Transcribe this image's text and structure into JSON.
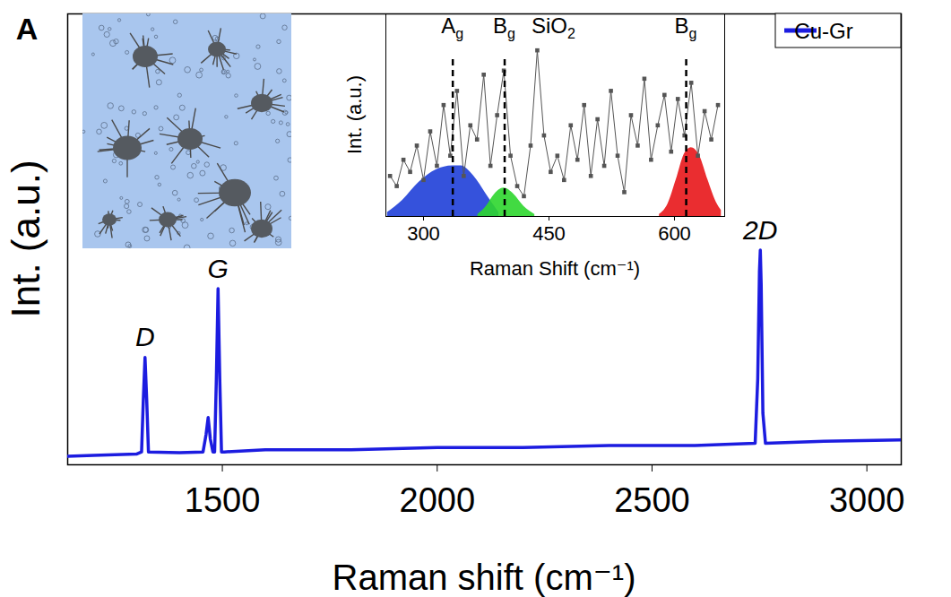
{
  "chart_data": [
    {
      "type": "line",
      "panel_label": "A",
      "x_label": "Raman shift (cm⁻¹)",
      "y_label": "Int. (a.u.)",
      "xlim": [
        1140,
        3080
      ],
      "xticks": [
        1500,
        2000,
        2500,
        3000
      ],
      "ylim": [
        0,
        1.05
      ],
      "tick_labels": "x",
      "legend": "top-right",
      "series": [
        {
          "name": "Cu-Gr",
          "color": "#1c1ce0",
          "x": [
            1140,
            1200,
            1300,
            1312,
            1316,
            1320,
            1324,
            1328,
            1400,
            1455,
            1462,
            1467,
            1472,
            1478,
            1482,
            1486,
            1490,
            1494,
            1498,
            1505,
            1600,
            1800,
            2000,
            2200,
            2400,
            2600,
            2740,
            2746,
            2750,
            2752,
            2754,
            2758,
            2764,
            2900,
            3080
          ],
          "values": [
            0.02,
            0.022,
            0.025,
            0.03,
            0.15,
            0.25,
            0.15,
            0.03,
            0.028,
            0.03,
            0.07,
            0.11,
            0.06,
            0.03,
            0.03,
            0.2,
            0.41,
            0.2,
            0.03,
            0.03,
            0.035,
            0.035,
            0.04,
            0.04,
            0.045,
            0.045,
            0.05,
            0.2,
            0.45,
            0.5,
            0.42,
            0.12,
            0.05,
            0.055,
            0.058
          ]
        }
      ],
      "peak_labels": [
        {
          "text": "D",
          "x": 1320
        },
        {
          "text": "G",
          "x": 1490
        },
        {
          "text": "2D",
          "x": 2752
        }
      ]
    },
    {
      "type": "line",
      "x_label": "Raman Shift (cm⁻¹)",
      "y_label": "Int. (a.u.)",
      "xlim": [
        255,
        660
      ],
      "xticks": [
        300,
        450,
        600
      ],
      "ylim": [
        0,
        1
      ],
      "tick_labels": "x",
      "series": [
        {
          "color": "#555555",
          "marker": "square",
          "x": [
            260,
            268,
            276,
            284,
            292,
            300,
            308,
            316,
            324,
            332,
            340,
            348,
            356,
            364,
            372,
            380,
            388,
            396,
            404,
            412,
            420,
            428,
            436,
            444,
            452,
            460,
            468,
            476,
            484,
            492,
            500,
            508,
            516,
            524,
            532,
            540,
            548,
            556,
            564,
            572,
            580,
            588,
            596,
            604,
            612,
            620,
            628,
            636,
            644,
            652
          ],
          "values": [
            0.2,
            0.15,
            0.28,
            0.22,
            0.35,
            0.18,
            0.42,
            0.25,
            0.55,
            0.3,
            0.62,
            0.2,
            0.45,
            0.38,
            0.7,
            0.25,
            0.5,
            0.72,
            0.3,
            0.15,
            0.1,
            0.35,
            0.82,
            0.4,
            0.22,
            0.3,
            0.18,
            0.45,
            0.28,
            0.55,
            0.2,
            0.48,
            0.25,
            0.62,
            0.3,
            0.12,
            0.5,
            0.35,
            0.68,
            0.28,
            0.45,
            0.6,
            0.32,
            0.58,
            0.4,
            0.66,
            0.3,
            0.52,
            0.38,
            0.55
          ]
        }
      ],
      "bands": [
        {
          "color": "#1f3fd8",
          "x": [
            257,
            275,
            295,
            315,
            335,
            345,
            360,
            375,
            390
          ],
          "values": [
            0.02,
            0.08,
            0.17,
            0.23,
            0.25,
            0.25,
            0.2,
            0.11,
            0.02
          ]
        },
        {
          "color": "#2ed62e",
          "x": [
            365,
            375,
            385,
            396,
            408,
            420,
            433
          ],
          "values": [
            0.01,
            0.05,
            0.11,
            0.14,
            0.11,
            0.05,
            0.01
          ]
        },
        {
          "color": "#e8161a",
          "x": [
            582,
            592,
            602,
            612,
            620,
            630,
            640,
            650,
            656
          ],
          "values": [
            0.01,
            0.06,
            0.18,
            0.31,
            0.34,
            0.3,
            0.18,
            0.07,
            0.03
          ]
        }
      ],
      "mode_lines": [
        {
          "label": "Ag",
          "x": 335
        },
        {
          "label": "Bg",
          "x": 397
        },
        {
          "label": "Bg",
          "x": 614
        }
      ],
      "annotations": [
        {
          "text": "SiO2",
          "x": 435
        }
      ]
    }
  ]
}
